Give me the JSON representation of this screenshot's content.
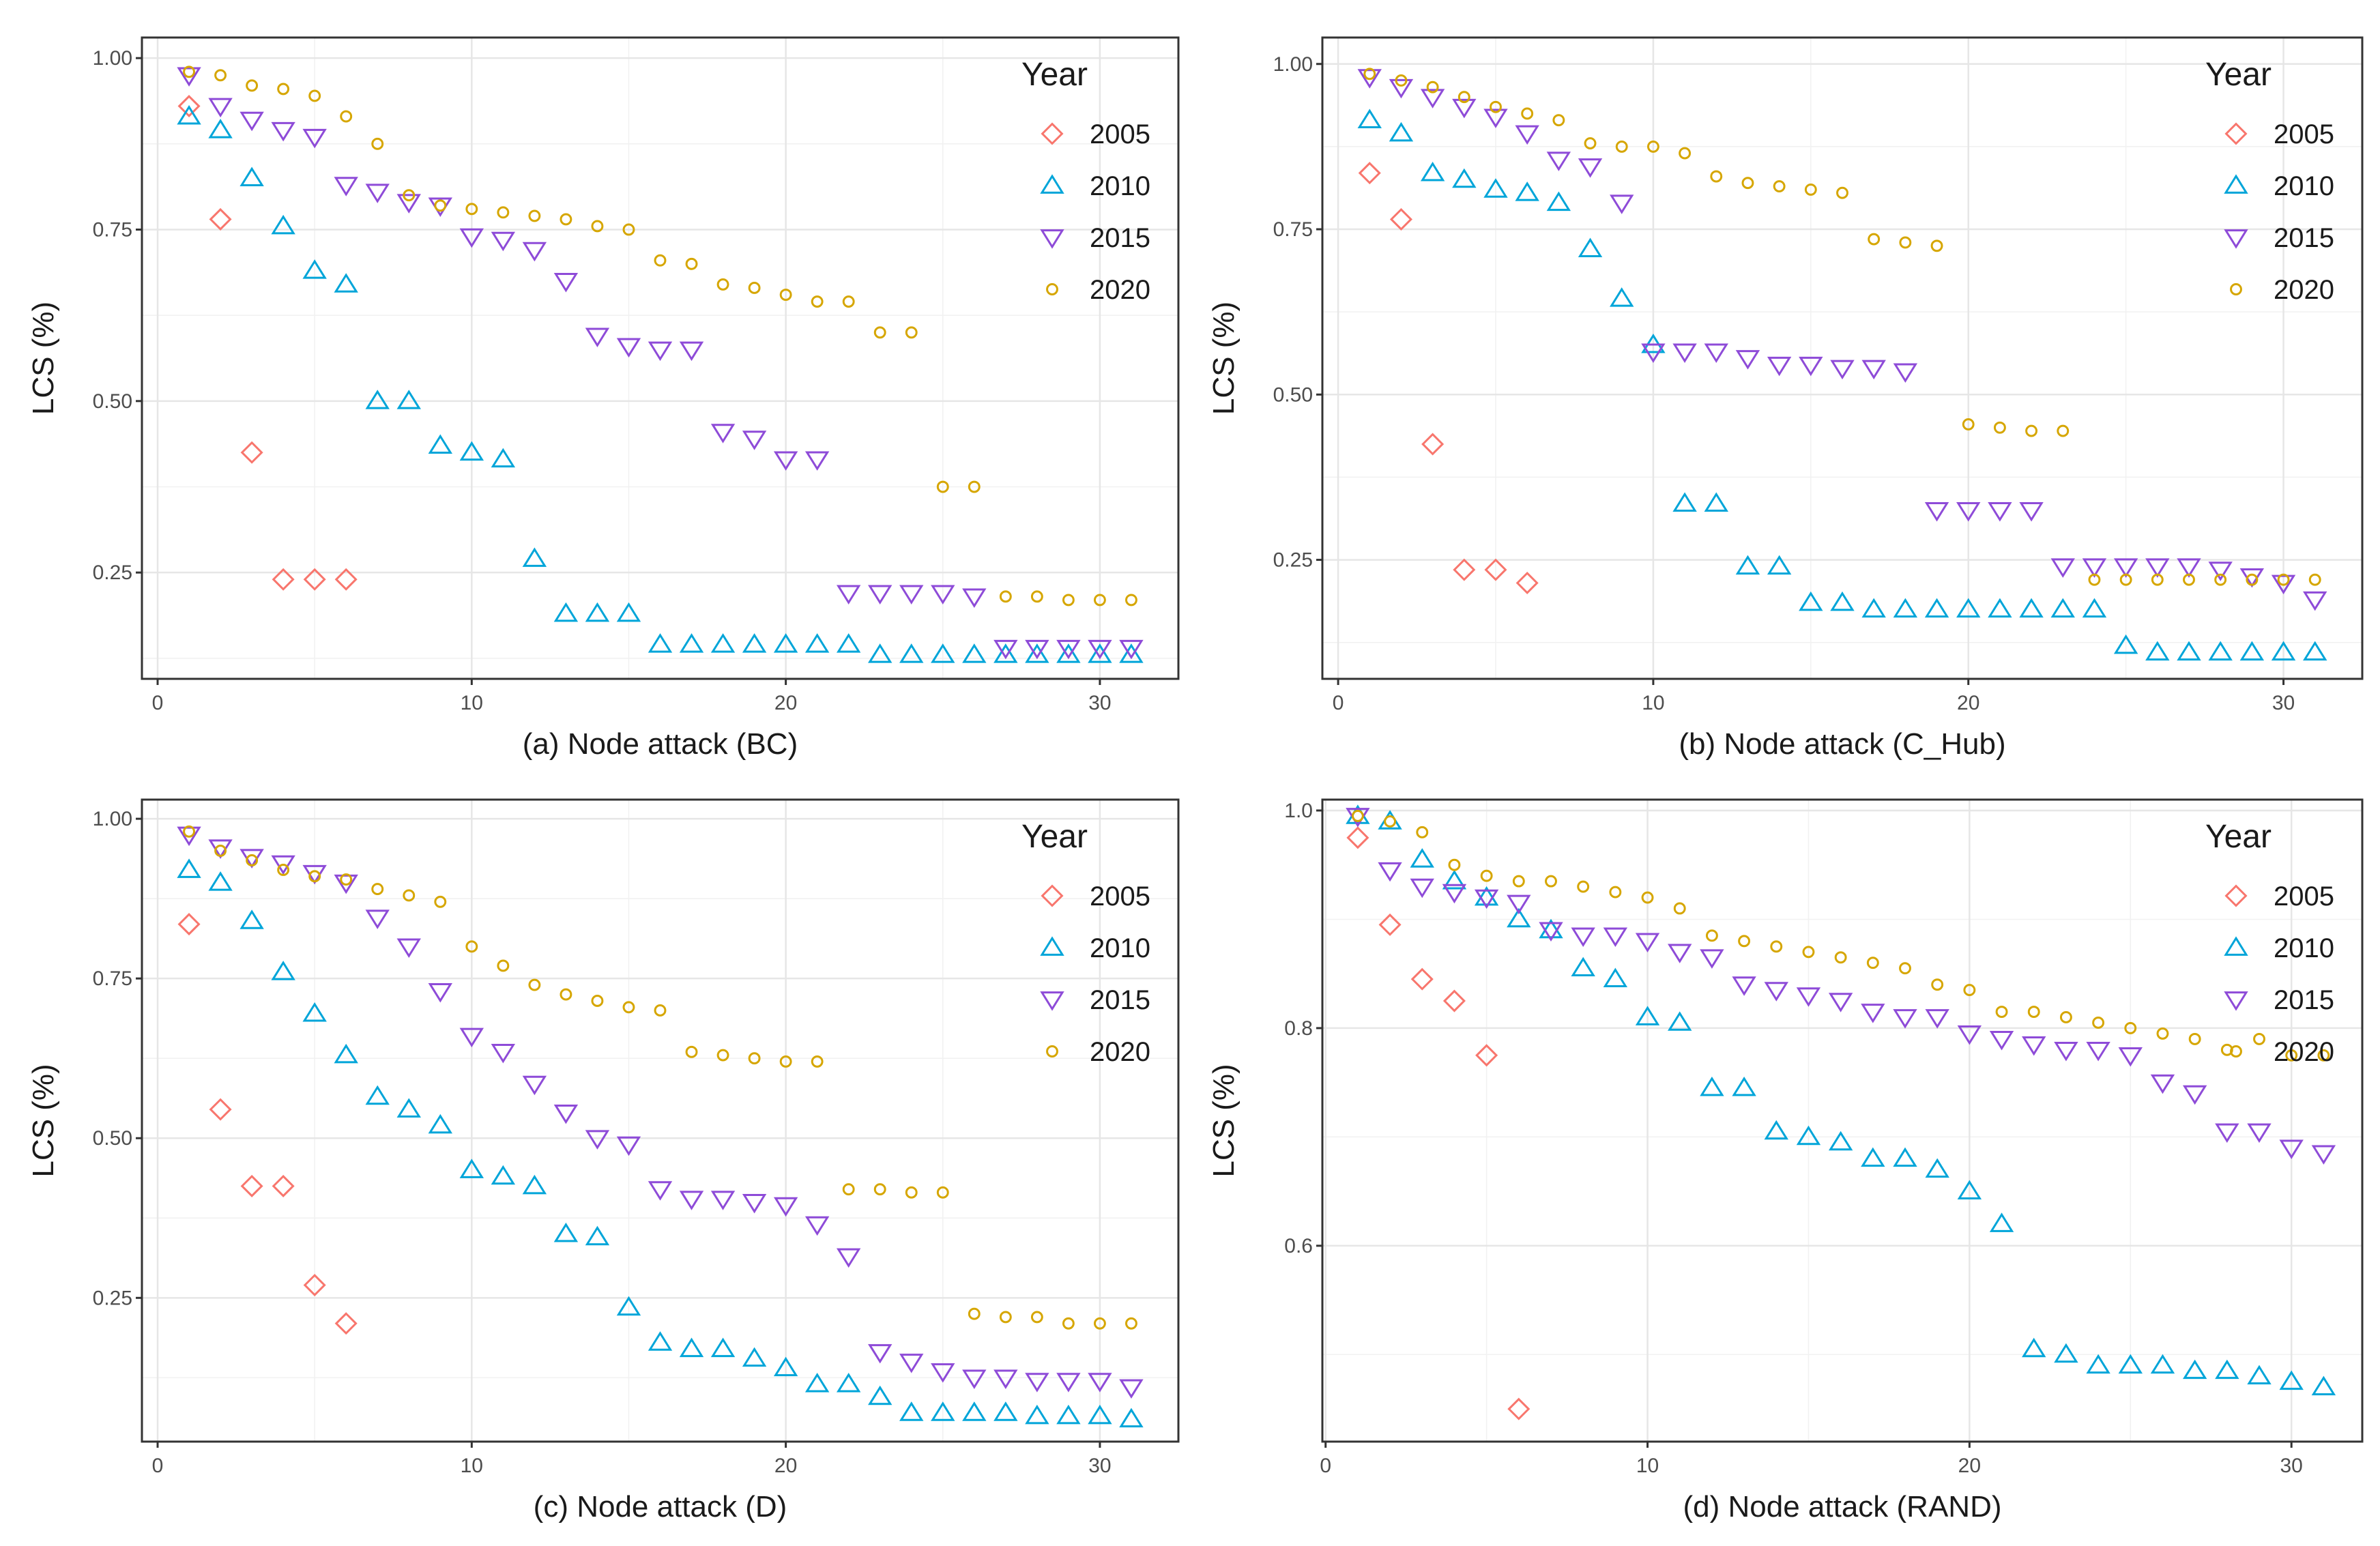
{
  "colors": {
    "2005": "#F8766D",
    "2010": "#00A5D9",
    "2015": "#8E4BD8",
    "2020": "#D6A600"
  },
  "chart_data": [
    {
      "id": "a",
      "type": "scatter",
      "xlabel": "(a) Node attack (BC)",
      "ylabel": "LCS (%)",
      "legend_title": "Year",
      "legend_position": "top-right",
      "grid": true,
      "xlim": [
        -0.5,
        32.5
      ],
      "ylim": [
        0.095,
        1.03
      ],
      "xticks": [
        0,
        10,
        20,
        30
      ],
      "xtick_labels": [
        "0",
        "10",
        "20",
        "30"
      ],
      "yticks": [
        0.25,
        0.5,
        0.75,
        1.0
      ],
      "ytick_labels": [
        "0.25",
        "0.50",
        "0.75",
        "1.00"
      ],
      "series": [
        {
          "name": "2005",
          "shape": "diamond",
          "x": [
            1,
            2,
            3,
            4,
            5,
            6
          ],
          "y": [
            0.93,
            0.765,
            0.425,
            0.24,
            0.24,
            0.24
          ]
        },
        {
          "name": "2010",
          "shape": "triangle",
          "x": [
            1,
            2,
            3,
            4,
            5,
            6,
            7,
            8,
            9,
            10,
            11,
            12,
            13,
            14,
            15,
            16,
            17,
            18,
            19,
            20,
            21,
            22,
            23,
            24,
            25,
            26,
            27,
            28,
            29,
            30,
            31
          ],
          "y": [
            0.915,
            0.895,
            0.825,
            0.755,
            0.69,
            0.67,
            0.5,
            0.5,
            0.435,
            0.425,
            0.415,
            0.27,
            0.19,
            0.19,
            0.19,
            0.145,
            0.145,
            0.145,
            0.145,
            0.145,
            0.145,
            0.145,
            0.13,
            0.13,
            0.13,
            0.13,
            0.13,
            0.13,
            0.13,
            0.13,
            0.13
          ]
        },
        {
          "name": "2015",
          "shape": "triangle-down",
          "x": [
            1,
            2,
            3,
            4,
            5,
            6,
            7,
            8,
            9,
            10,
            11,
            12,
            13,
            14,
            15,
            16,
            17,
            18,
            19,
            20,
            21,
            22,
            23,
            24,
            25,
            26,
            27,
            28,
            29,
            30,
            31
          ],
          "y": [
            0.975,
            0.93,
            0.91,
            0.895,
            0.885,
            0.815,
            0.805,
            0.79,
            0.785,
            0.74,
            0.735,
            0.72,
            0.675,
            0.595,
            0.58,
            0.575,
            0.575,
            0.455,
            0.445,
            0.415,
            0.415,
            0.22,
            0.22,
            0.22,
            0.22,
            0.215,
            0.14,
            0.14,
            0.14,
            0.14,
            0.14
          ]
        },
        {
          "name": "2020",
          "shape": "circle",
          "x": [
            1,
            2,
            3,
            4,
            5,
            6,
            7,
            8,
            9,
            10,
            11,
            12,
            13,
            14,
            15,
            16,
            17,
            18,
            19,
            20,
            21,
            22,
            23,
            24,
            25,
            26,
            27,
            28,
            29,
            30,
            31
          ],
          "y": [
            0.98,
            0.975,
            0.96,
            0.955,
            0.945,
            0.915,
            0.875,
            0.8,
            0.785,
            0.78,
            0.775,
            0.77,
            0.765,
            0.755,
            0.75,
            0.705,
            0.7,
            0.67,
            0.665,
            0.655,
            0.645,
            0.645,
            0.6,
            0.6,
            0.375,
            0.375,
            0.215,
            0.215,
            0.21,
            0.21,
            0.21
          ]
        }
      ]
    },
    {
      "id": "b",
      "type": "scatter",
      "xlabel": "(b) Node attack (C_Hub)",
      "ylabel": "LCS (%)",
      "legend_title": "Year",
      "legend_position": "top-right",
      "grid": true,
      "xlim": [
        -0.5,
        32.5
      ],
      "ylim": [
        0.07,
        1.04
      ],
      "xticks": [
        0,
        10,
        20,
        30
      ],
      "xtick_labels": [
        "0",
        "10",
        "20",
        "30"
      ],
      "yticks": [
        0.25,
        0.5,
        0.75,
        1.0
      ],
      "ytick_labels": [
        "0.25",
        "0.50",
        "0.75",
        "1.00"
      ],
      "series": [
        {
          "name": "2005",
          "shape": "diamond",
          "x": [
            1,
            2,
            3,
            4,
            5,
            6
          ],
          "y": [
            0.835,
            0.765,
            0.425,
            0.235,
            0.235,
            0.215
          ]
        },
        {
          "name": "2010",
          "shape": "triangle",
          "x": [
            1,
            2,
            3,
            4,
            5,
            6,
            7,
            8,
            9,
            10,
            11,
            12,
            13,
            14,
            15,
            16,
            17,
            18,
            19,
            20,
            21,
            22,
            23,
            24,
            25,
            26,
            27,
            28,
            29,
            30,
            31
          ],
          "y": [
            0.915,
            0.895,
            0.835,
            0.825,
            0.81,
            0.805,
            0.79,
            0.72,
            0.645,
            0.575,
            0.335,
            0.335,
            0.24,
            0.24,
            0.185,
            0.185,
            0.175,
            0.175,
            0.175,
            0.175,
            0.175,
            0.175,
            0.175,
            0.175,
            0.12,
            0.11,
            0.11,
            0.11,
            0.11,
            0.11,
            0.11
          ]
        },
        {
          "name": "2015",
          "shape": "triangle-down",
          "x": [
            1,
            2,
            3,
            4,
            5,
            6,
            7,
            8,
            9,
            10,
            11,
            12,
            13,
            14,
            15,
            16,
            17,
            18,
            19,
            20,
            21,
            22,
            23,
            24,
            25,
            26,
            27,
            28,
            29,
            30,
            31
          ],
          "y": [
            0.98,
            0.965,
            0.95,
            0.935,
            0.92,
            0.895,
            0.855,
            0.845,
            0.79,
            0.565,
            0.565,
            0.565,
            0.555,
            0.545,
            0.545,
            0.54,
            0.54,
            0.535,
            0.325,
            0.325,
            0.325,
            0.325,
            0.24,
            0.24,
            0.24,
            0.24,
            0.24,
            0.235,
            0.225,
            0.215,
            0.19
          ]
        },
        {
          "name": "2020",
          "shape": "circle",
          "x": [
            1,
            2,
            3,
            4,
            5,
            6,
            7,
            8,
            9,
            10,
            11,
            12,
            13,
            14,
            15,
            16,
            17,
            18,
            19,
            20,
            21,
            22,
            23,
            24,
            25,
            26,
            27,
            28,
            29,
            30,
            31
          ],
          "y": [
            0.985,
            0.975,
            0.965,
            0.95,
            0.935,
            0.925,
            0.915,
            0.88,
            0.875,
            0.875,
            0.865,
            0.83,
            0.82,
            0.815,
            0.81,
            0.805,
            0.735,
            0.73,
            0.725,
            0.455,
            0.45,
            0.445,
            0.445,
            0.22,
            0.22,
            0.22,
            0.22,
            0.22,
            0.22,
            0.22,
            0.22
          ]
        }
      ]
    },
    {
      "id": "c",
      "type": "scatter",
      "xlabel": "(c) Node attack (D)",
      "ylabel": "LCS (%)",
      "legend_title": "Year",
      "legend_position": "top-right",
      "grid": true,
      "xlim": [
        -0.5,
        32.5
      ],
      "ylim": [
        0.025,
        1.03
      ],
      "xticks": [
        0,
        10,
        20,
        30
      ],
      "xtick_labels": [
        "0",
        "10",
        "20",
        "30"
      ],
      "yticks": [
        0.25,
        0.5,
        0.75,
        1.0
      ],
      "ytick_labels": [
        "0.25",
        "0.50",
        "0.75",
        "1.00"
      ],
      "series": [
        {
          "name": "2005",
          "shape": "diamond",
          "x": [
            1,
            2,
            3,
            4,
            5,
            6
          ],
          "y": [
            0.835,
            0.545,
            0.425,
            0.425,
            0.27,
            0.21
          ]
        },
        {
          "name": "2010",
          "shape": "triangle",
          "x": [
            1,
            2,
            3,
            4,
            5,
            6,
            7,
            8,
            9,
            10,
            11,
            12,
            13,
            14,
            15,
            16,
            17,
            18,
            19,
            20,
            21,
            22,
            23,
            24,
            25,
            26,
            27,
            28,
            29,
            30,
            31
          ],
          "y": [
            0.92,
            0.9,
            0.84,
            0.76,
            0.695,
            0.63,
            0.565,
            0.545,
            0.52,
            0.45,
            0.44,
            0.425,
            0.35,
            0.345,
            0.235,
            0.18,
            0.17,
            0.17,
            0.155,
            0.14,
            0.115,
            0.115,
            0.095,
            0.07,
            0.07,
            0.07,
            0.07,
            0.065,
            0.065,
            0.065,
            0.06
          ]
        },
        {
          "name": "2015",
          "shape": "triangle-down",
          "x": [
            1,
            2,
            3,
            4,
            5,
            6,
            7,
            8,
            9,
            10,
            11,
            12,
            13,
            14,
            15,
            16,
            17,
            18,
            19,
            20,
            21,
            22,
            23,
            24,
            25,
            26,
            27,
            28,
            29,
            30,
            31
          ],
          "y": [
            0.975,
            0.955,
            0.94,
            0.93,
            0.915,
            0.9,
            0.845,
            0.8,
            0.73,
            0.66,
            0.635,
            0.585,
            0.54,
            0.5,
            0.49,
            0.42,
            0.405,
            0.405,
            0.4,
            0.395,
            0.365,
            0.315,
            0.165,
            0.15,
            0.135,
            0.125,
            0.125,
            0.12,
            0.12,
            0.12,
            0.11
          ]
        },
        {
          "name": "2020",
          "shape": "circle",
          "x": [
            1,
            2,
            3,
            4,
            5,
            6,
            7,
            8,
            9,
            10,
            11,
            12,
            13,
            14,
            15,
            16,
            17,
            18,
            19,
            20,
            21,
            22,
            23,
            24,
            25,
            26,
            27,
            28,
            29,
            30,
            31
          ],
          "y": [
            0.98,
            0.95,
            0.935,
            0.92,
            0.91,
            0.905,
            0.89,
            0.88,
            0.87,
            0.8,
            0.77,
            0.74,
            0.725,
            0.715,
            0.705,
            0.7,
            0.635,
            0.63,
            0.625,
            0.62,
            0.62,
            0.42,
            0.42,
            0.415,
            0.415,
            0.225,
            0.22,
            0.22,
            0.21,
            0.21,
            0.21
          ]
        }
      ]
    },
    {
      "id": "d",
      "type": "scatter",
      "xlabel": "(d) Node attack (RAND)",
      "ylabel": "LCS (%)",
      "legend_title": "Year",
      "legend_position": "top-right",
      "grid": true,
      "xlim": [
        -0.1,
        32.2
      ],
      "ylim": [
        0.42,
        1.01
      ],
      "xticks": [
        0,
        10,
        20,
        30
      ],
      "xtick_labels": [
        "0",
        "10",
        "20",
        "30"
      ],
      "yticks": [
        0.6,
        0.8,
        1.0
      ],
      "ytick_labels": [
        "0.6",
        "0.8",
        "1.0"
      ],
      "series": [
        {
          "name": "2005",
          "shape": "diamond",
          "x": [
            1,
            2,
            3,
            4,
            5,
            6
          ],
          "y": [
            0.975,
            0.895,
            0.845,
            0.825,
            0.775,
            0.45
          ]
        },
        {
          "name": "2010",
          "shape": "triangle",
          "x": [
            1,
            2,
            3,
            4,
            5,
            6,
            7,
            8,
            9,
            10,
            11,
            12,
            13,
            14,
            15,
            16,
            17,
            18,
            19,
            20,
            21,
            22,
            23,
            24,
            25,
            26,
            27,
            28,
            29,
            30,
            31
          ],
          "y": [
            0.995,
            0.99,
            0.955,
            0.935,
            0.92,
            0.9,
            0.89,
            0.855,
            0.845,
            0.81,
            0.805,
            0.745,
            0.745,
            0.705,
            0.7,
            0.695,
            0.68,
            0.68,
            0.67,
            0.65,
            0.62,
            0.505,
            0.5,
            0.49,
            0.49,
            0.49,
            0.485,
            0.485,
            0.48,
            0.475,
            0.47
          ]
        },
        {
          "name": "2015",
          "shape": "triangle-down",
          "x": [
            1,
            2,
            3,
            4,
            5,
            6,
            7,
            8,
            9,
            10,
            11,
            12,
            13,
            14,
            15,
            16,
            17,
            18,
            19,
            20,
            21,
            22,
            23,
            24,
            25,
            26,
            27,
            28,
            29,
            30,
            31
          ],
          "y": [
            0.995,
            0.945,
            0.93,
            0.925,
            0.92,
            0.915,
            0.89,
            0.885,
            0.885,
            0.88,
            0.87,
            0.865,
            0.84,
            0.835,
            0.83,
            0.825,
            0.815,
            0.81,
            0.81,
            0.795,
            0.79,
            0.785,
            0.78,
            0.78,
            0.775,
            0.75,
            0.74,
            0.705,
            0.705,
            0.69,
            0.685
          ]
        },
        {
          "name": "2020",
          "shape": "circle",
          "x": [
            1,
            2,
            3,
            4,
            5,
            6,
            7,
            8,
            9,
            10,
            11,
            12,
            13,
            14,
            15,
            16,
            17,
            18,
            19,
            20,
            21,
            22,
            23,
            24,
            25,
            26,
            27,
            28,
            29,
            30,
            31
          ],
          "y": [
            0.995,
            0.99,
            0.98,
            0.95,
            0.94,
            0.935,
            0.935,
            0.93,
            0.925,
            0.92,
            0.91,
            0.885,
            0.88,
            0.875,
            0.87,
            0.865,
            0.86,
            0.855,
            0.84,
            0.835,
            0.815,
            0.815,
            0.81,
            0.805,
            0.8,
            0.795,
            0.79,
            0.78,
            0.79,
            0.775,
            0.775
          ]
        }
      ]
    }
  ]
}
